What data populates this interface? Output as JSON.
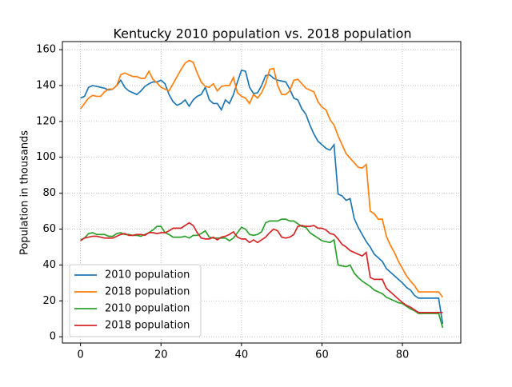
{
  "chart_data": {
    "type": "line",
    "title": "Kentucky 2010 population vs. 2018 population",
    "y_label": "Population in thousands",
    "x": [
      0,
      1,
      2,
      3,
      4,
      5,
      6,
      7,
      8,
      9,
      10,
      11,
      12,
      13,
      14,
      15,
      16,
      17,
      18,
      19,
      20,
      21,
      22,
      23,
      24,
      25,
      26,
      27,
      28,
      29,
      30,
      31,
      32,
      33,
      34,
      35,
      36,
      37,
      38,
      39,
      40,
      41,
      42,
      43,
      44,
      45,
      46,
      47,
      48,
      49,
      50,
      51,
      52,
      53,
      54,
      55,
      56,
      57,
      58,
      59,
      60,
      61,
      62,
      63,
      64,
      65,
      66,
      67,
      68,
      69,
      70,
      71,
      72,
      73,
      74,
      75,
      76,
      77,
      78,
      79,
      80,
      81,
      82,
      83,
      84,
      85,
      86,
      87,
      88,
      89,
      90
    ],
    "series": [
      {
        "name": "2010 population",
        "color": "#1f77b4",
        "values": [
          133,
          134,
          139,
          140,
          139.5,
          139,
          138.5,
          137.5,
          138,
          140,
          143,
          139,
          137,
          136,
          135,
          137,
          139.5,
          141,
          142,
          142,
          143,
          141,
          135,
          131,
          129,
          130,
          132,
          128.5,
          132,
          134,
          135,
          139,
          132,
          130,
          130,
          126.5,
          132,
          130,
          135,
          142,
          148.5,
          148,
          139,
          135.5,
          136,
          140,
          145.5,
          146,
          144,
          143,
          142.5,
          142,
          138,
          133,
          132,
          127,
          124,
          118,
          113,
          109,
          107,
          105,
          104,
          107,
          79.5,
          78.5,
          76,
          77,
          66,
          61,
          57,
          53,
          50,
          46,
          44,
          42,
          38,
          36,
          34,
          32,
          30,
          27.5,
          26,
          23,
          21.5,
          21.5,
          21.5,
          21.5,
          21.5,
          21.5,
          7
        ]
      },
      {
        "name": "2018 population",
        "color": "#ff7f0e",
        "values": [
          127,
          130,
          133,
          134.5,
          134,
          134,
          136.5,
          138,
          138,
          140,
          146,
          147,
          146,
          145,
          145,
          144,
          144,
          148,
          143.5,
          141.5,
          139,
          138,
          137,
          141,
          145,
          149,
          152.5,
          154,
          153,
          147,
          142,
          139.5,
          139,
          141,
          137,
          139.5,
          140,
          140,
          144.5,
          136,
          134,
          133,
          130,
          135,
          133,
          136,
          141,
          149,
          149.5,
          140,
          135,
          135,
          137,
          143,
          143.5,
          141,
          138.5,
          137.5,
          136.5,
          131,
          128,
          126.5,
          121,
          118,
          112,
          107,
          102,
          99.5,
          97,
          94.5,
          94,
          96,
          70,
          68.5,
          65.5,
          65.5,
          56,
          51,
          47,
          42,
          38,
          34,
          31,
          28.5,
          25,
          25,
          25,
          25,
          25,
          25,
          22
        ]
      },
      {
        "name": "2010 population",
        "color": "#2ca02c",
        "values": [
          54,
          55,
          57.5,
          58,
          57,
          57,
          57,
          56,
          56,
          57.5,
          58,
          57,
          57,
          56.5,
          56.5,
          56,
          57,
          58,
          59.5,
          61.5,
          61.5,
          58,
          57,
          55.5,
          55.5,
          55.5,
          56,
          55,
          56.5,
          56.5,
          57.5,
          59,
          55.5,
          55,
          55,
          55,
          55,
          53.5,
          55,
          58,
          61,
          60,
          57,
          56.5,
          57,
          58.5,
          63.5,
          64.5,
          64.5,
          64.5,
          65.5,
          65.5,
          64.5,
          64.5,
          63,
          61.5,
          61,
          58,
          56.5,
          55,
          53.5,
          53,
          52.5,
          54,
          40,
          39.5,
          39,
          40,
          35.5,
          33,
          31,
          29.5,
          28,
          26,
          25,
          24,
          22,
          21,
          20,
          19,
          18.5,
          17,
          15.5,
          14.5,
          13,
          13,
          13,
          13,
          13,
          13,
          5
        ]
      },
      {
        "name": "2018 population",
        "color": "#d62728",
        "values": [
          53.5,
          55,
          55.5,
          56,
          56,
          55.5,
          55,
          55,
          55,
          56,
          57,
          57.5,
          56.5,
          56.5,
          57,
          57,
          56.5,
          58,
          58,
          57.5,
          58,
          58,
          59,
          60.5,
          60.5,
          60.5,
          62,
          63.5,
          62,
          58,
          55,
          54.5,
          54.5,
          55.5,
          54,
          55.5,
          56,
          57,
          58.5,
          55.5,
          54.5,
          54.5,
          52.5,
          54,
          52.5,
          54,
          55.5,
          58,
          60,
          59,
          55.5,
          55,
          55.5,
          57,
          61.5,
          62,
          61.5,
          61.5,
          62,
          60.5,
          60.5,
          59.5,
          57.5,
          57,
          54.5,
          51.5,
          50,
          48,
          47,
          46,
          45,
          47,
          33,
          32,
          32,
          32,
          27,
          25,
          23,
          21,
          19,
          17.5,
          16.5,
          15,
          13.5,
          13.5,
          13.5,
          13.5,
          13.5,
          13.5,
          13.5
        ]
      }
    ],
    "xlim": [
      -4.5,
      94.5
    ],
    "ylim": [
      -3.5,
      164.5
    ],
    "xticks": [
      0,
      20,
      40,
      60,
      80
    ],
    "yticks": [
      0,
      20,
      40,
      60,
      80,
      100,
      120,
      140,
      160
    ],
    "grid": true,
    "legend": "lower left"
  }
}
